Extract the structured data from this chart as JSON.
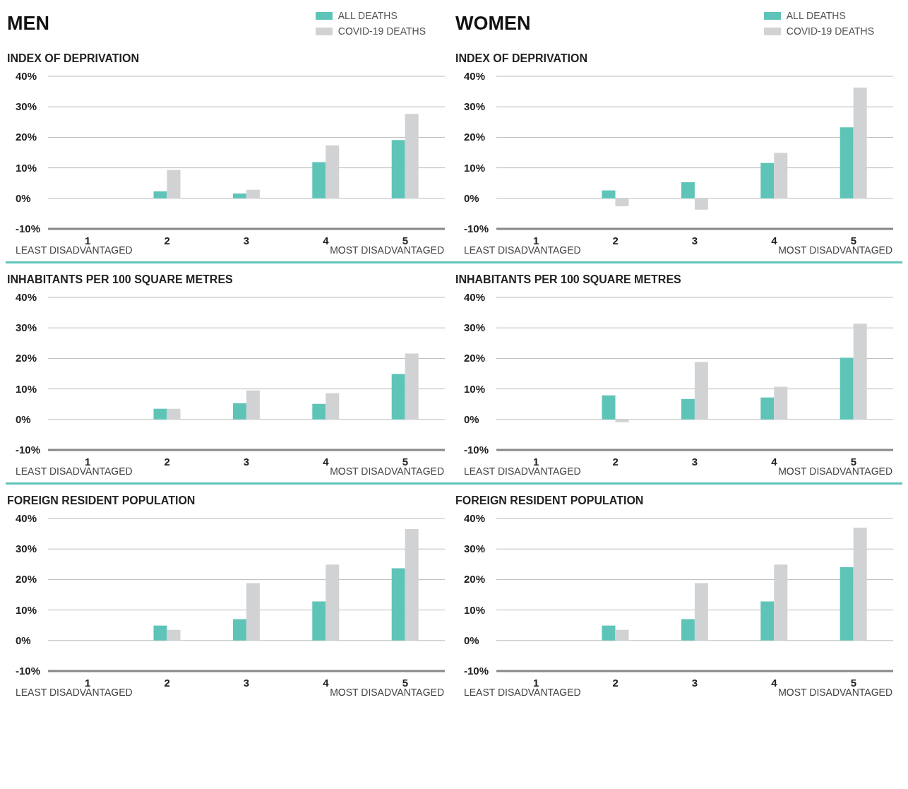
{
  "chart_data": [
    {
      "type": "bar",
      "title": "MEN",
      "subtitle": "INDEX OF DEPRIVATION",
      "categories": [
        "1",
        "2",
        "3",
        "4",
        "5"
      ],
      "series": [
        {
          "name": "ALL DEATHS",
          "color": "#5fc4b8",
          "values": [
            0,
            2.3,
            1.6,
            11.9,
            19.1
          ]
        },
        {
          "name": "COVID-19 DEATHS",
          "color": "#d1d2d4",
          "values": [
            0,
            9.3,
            2.8,
            17.4,
            27.7
          ]
        }
      ],
      "ylim": [
        -10,
        40
      ],
      "yticks": [
        {
          "value": -10,
          "label": "-10%"
        },
        {
          "value": 0,
          "label": "0%"
        },
        {
          "value": 10,
          "label": "10%"
        },
        {
          "value": 20,
          "label": "20%"
        },
        {
          "value": 30,
          "label": "30%"
        },
        {
          "value": 40,
          "label": "40%"
        }
      ],
      "grid": "y",
      "legend": "top right",
      "annotations": [
        "LEAST DISADVANTAGED",
        "MOST DISADVANTAGED"
      ]
    },
    {
      "type": "bar",
      "title": "WOMEN",
      "subtitle": "INDEX OF DEPRIVATION",
      "categories": [
        "1",
        "2",
        "3",
        "4",
        "5"
      ],
      "series": [
        {
          "name": "ALL DEATHS",
          "color": "#5fc4b8",
          "values": [
            0,
            2.6,
            5.3,
            11.6,
            23.3
          ]
        },
        {
          "name": "COVID-19 DEATHS",
          "color": "#d1d2d4",
          "values": [
            0,
            -2.6,
            -3.7,
            14.9,
            36.3
          ]
        }
      ],
      "ylim": [
        -10,
        40
      ],
      "yticks": [
        {
          "value": -10,
          "label": "-10%"
        },
        {
          "value": 0,
          "label": "0%"
        },
        {
          "value": 10,
          "label": "10%"
        },
        {
          "value": 20,
          "label": "20%"
        },
        {
          "value": 30,
          "label": "30%"
        },
        {
          "value": 40,
          "label": "40%"
        }
      ],
      "grid": "y",
      "legend": "top right",
      "annotations": [
        "LEAST DISADVANTAGED",
        "MOST DISADVANTAGED"
      ]
    },
    {
      "type": "bar",
      "subtitle": "INHABITANTS PER 100 SQUARE METRES",
      "categories": [
        "1",
        "2",
        "3",
        "4",
        "5"
      ],
      "series": [
        {
          "color": "#5fc4b8",
          "values": [
            0,
            3.5,
            5.3,
            5.1,
            14.9
          ]
        },
        {
          "color": "#d1d2d4",
          "values": [
            0,
            3.5,
            9.5,
            8.6,
            21.6
          ]
        }
      ],
      "ylim": [
        -10,
        40
      ],
      "yticks": [
        {
          "value": -10,
          "label": "-10%"
        },
        {
          "value": 0,
          "label": "0%"
        },
        {
          "value": 10,
          "label": "10%"
        },
        {
          "value": 20,
          "label": "20%"
        },
        {
          "value": 30,
          "label": "30%"
        },
        {
          "value": 40,
          "label": "40%"
        }
      ],
      "grid": "y",
      "annotations": [
        "LEAST DISADVANTAGED",
        "MOST DISADVANTAGED"
      ]
    },
    {
      "type": "bar",
      "subtitle": "INHABITANTS PER 100 SQUARE METRES",
      "categories": [
        "1",
        "2",
        "3",
        "4",
        "5"
      ],
      "series": [
        {
          "color": "#5fc4b8",
          "values": [
            0,
            7.9,
            6.7,
            7.2,
            20.2
          ]
        },
        {
          "color": "#d1d2d4",
          "values": [
            0,
            -0.9,
            18.8,
            10.7,
            31.4
          ]
        }
      ],
      "ylim": [
        -10,
        40
      ],
      "yticks": [
        {
          "value": -10,
          "label": "-10%"
        },
        {
          "value": 0,
          "label": "0%"
        },
        {
          "value": 10,
          "label": "10%"
        },
        {
          "value": 20,
          "label": "20%"
        },
        {
          "value": 30,
          "label": "30%"
        },
        {
          "value": 40,
          "label": "40%"
        }
      ],
      "grid": "y",
      "annotations": [
        "LEAST DISADVANTAGED",
        "MOST DISADVANTAGED"
      ]
    },
    {
      "type": "bar",
      "subtitle": "FOREIGN RESIDENT POPULATION",
      "categories": [
        "1",
        "2",
        "3",
        "4",
        "5"
      ],
      "series": [
        {
          "color": "#5fc4b8",
          "values": [
            0,
            4.9,
            7.0,
            12.8,
            23.7
          ]
        },
        {
          "color": "#d1d2d4",
          "values": [
            0,
            3.5,
            18.8,
            24.9,
            36.5
          ]
        }
      ],
      "ylim": [
        -10,
        40
      ],
      "yticks": [
        {
          "value": -10,
          "label": "-10%"
        },
        {
          "value": 0,
          "label": "0%"
        },
        {
          "value": 10,
          "label": "10%"
        },
        {
          "value": 20,
          "label": "20%"
        },
        {
          "value": 30,
          "label": "30%"
        },
        {
          "value": 40,
          "label": "40%"
        }
      ],
      "grid": "y",
      "annotations": [
        "LEAST DISADVANTAGED",
        "MOST DISADVANTAGED"
      ]
    },
    {
      "type": "bar",
      "subtitle": "FOREIGN RESIDENT POPULATION",
      "categories": [
        "1",
        "2",
        "3",
        "4",
        "5"
      ],
      "series": [
        {
          "color": "#5fc4b8",
          "values": [
            0,
            4.9,
            7.0,
            12.8,
            24.0
          ]
        },
        {
          "color": "#d1d2d4",
          "values": [
            0,
            3.5,
            18.8,
            24.9,
            37.0
          ]
        }
      ],
      "ylim": [
        -10,
        40
      ],
      "yticks": [
        {
          "value": -10,
          "label": "-10%"
        },
        {
          "value": 0,
          "label": "0%"
        },
        {
          "value": 10,
          "label": "10%"
        },
        {
          "value": 20,
          "label": "20%"
        },
        {
          "value": 30,
          "label": "30%"
        },
        {
          "value": 40,
          "label": "40%"
        }
      ],
      "grid": "y",
      "annotations": [
        "LEAST DISADVANTAGED",
        "MOST DISADVANTAGED"
      ]
    }
  ]
}
